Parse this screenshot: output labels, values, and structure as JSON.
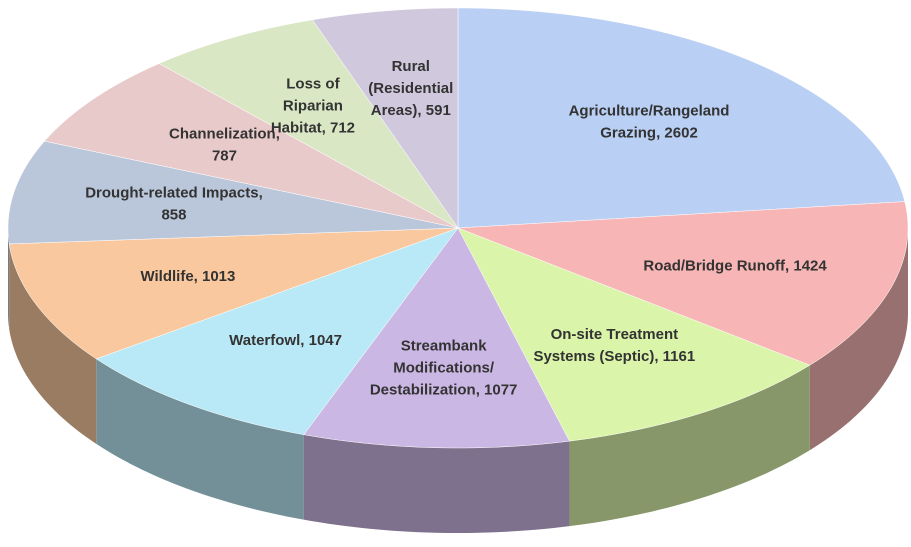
{
  "chart_data": {
    "type": "pie",
    "values": [
      2602,
      1424,
      1161,
      1077,
      1047,
      1013,
      858,
      787,
      712,
      591
    ],
    "value_labels": [
      "Agriculture/Rangeland Grazing, 2602",
      "Road/Bridge Runoff, 1424",
      "On-site Treatment Systems (Septic), 1161",
      "Streambank Modifications/ Destabilization, 1077",
      "Waterfowl, 1047",
      "Wildlife, 1013",
      "Drought-related Impacts, 858",
      "Channelization, 787",
      "Loss of Riparian Habitat, 712",
      "Rural (Residential Areas), 591"
    ],
    "colors": [
      "#b9cff3",
      "#f7b5b5",
      "#daf4a9",
      "#cbb7e4",
      "#b9e9f7",
      "#f9c89e",
      "#bac6da",
      "#e9caca",
      "#d9e7c5",
      "#d0c9dd"
    ]
  }
}
